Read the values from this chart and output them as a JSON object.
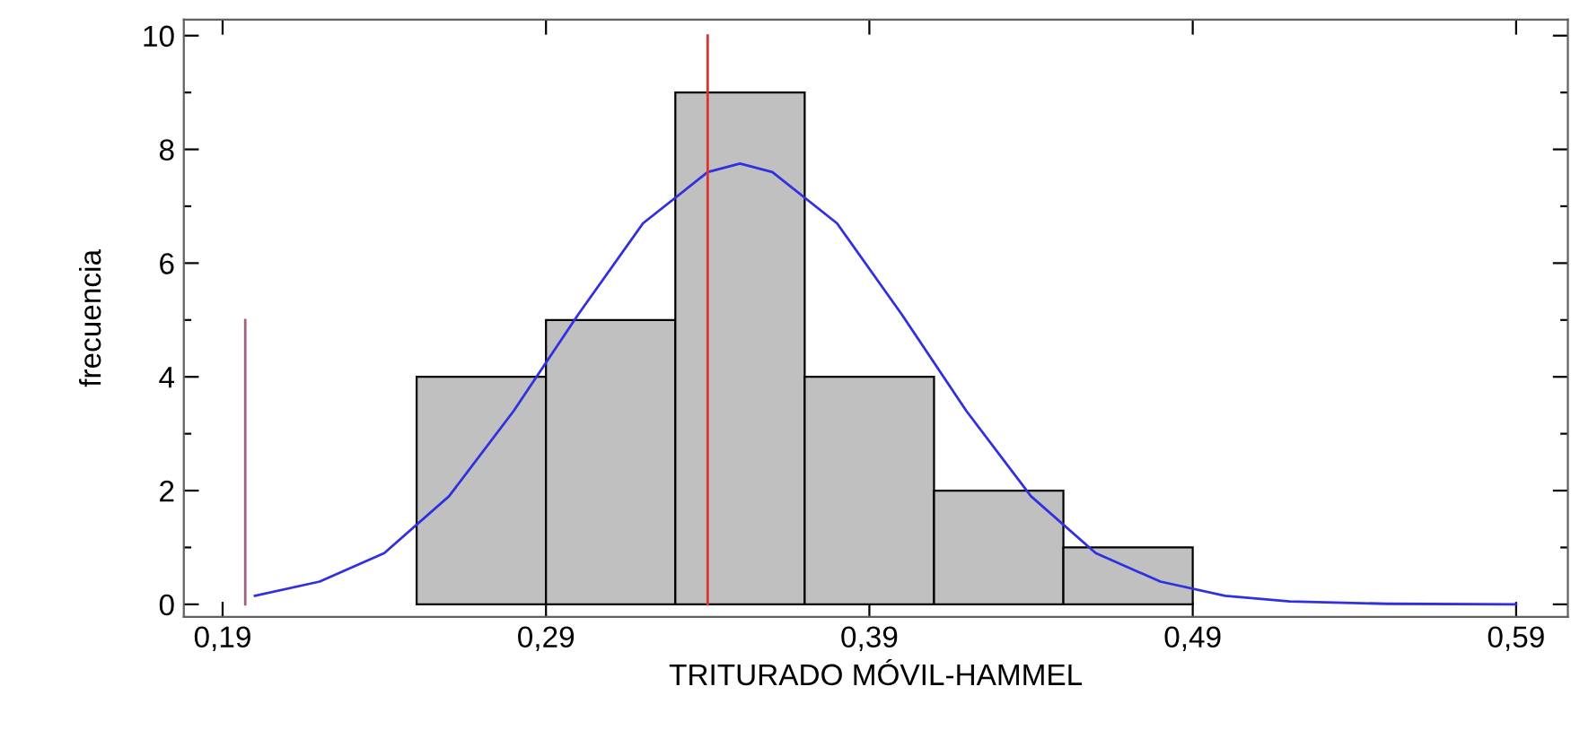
{
  "chart_data": {
    "type": "histogram",
    "xlabel": "TRITURADO MÓVIL-HAMMEL",
    "ylabel": "frecuencia",
    "bins": [
      0.25,
      0.29,
      0.33,
      0.37,
      0.41,
      0.45,
      0.49
    ],
    "values": [
      4,
      5,
      9,
      4,
      2,
      1
    ],
    "color": "#c0c0c0",
    "series": [
      {
        "type": "line",
        "color": "#3030e0",
        "x": [
          0.2,
          0.22,
          0.24,
          0.26,
          0.28,
          0.3,
          0.32,
          0.34,
          0.35,
          0.36,
          0.38,
          0.4,
          0.42,
          0.44,
          0.46,
          0.48,
          0.5,
          0.52,
          0.55,
          0.59
        ],
        "values": [
          0.15,
          0.4,
          0.9,
          1.9,
          3.4,
          5.1,
          6.7,
          7.6,
          7.75,
          7.6,
          6.7,
          5.1,
          3.4,
          1.9,
          0.9,
          0.4,
          0.15,
          0.05,
          0.01,
          0
        ]
      },
      {
        "type": "line",
        "color": "#a06080",
        "x": [
          0.197,
          0.197
        ],
        "values": [
          0,
          5
        ]
      },
      {
        "type": "line",
        "color": "#e03030",
        "x": [
          0.34,
          0.34
        ],
        "values": [
          0,
          10
        ]
      }
    ],
    "xlim": [
      0.178,
      0.606
    ],
    "ylim": [
      -0.22,
      10.28
    ],
    "xticks": [
      {
        "value": 0.19,
        "label": "0,19"
      },
      {
        "value": 0.29,
        "label": "0,29"
      },
      {
        "value": 0.39,
        "label": "0,39"
      },
      {
        "value": 0.49,
        "label": "0,49"
      },
      {
        "value": 0.59,
        "label": "0,59"
      }
    ],
    "yticks": [
      0,
      {
        "value": 1,
        "label": null
      },
      2,
      {
        "value": 3,
        "label": null
      },
      4,
      {
        "value": 5,
        "label": null
      },
      6,
      {
        "value": 7,
        "label": null
      },
      8,
      {
        "value": 9,
        "label": null
      },
      10
    ],
    "grid": false,
    "legend": false
  }
}
